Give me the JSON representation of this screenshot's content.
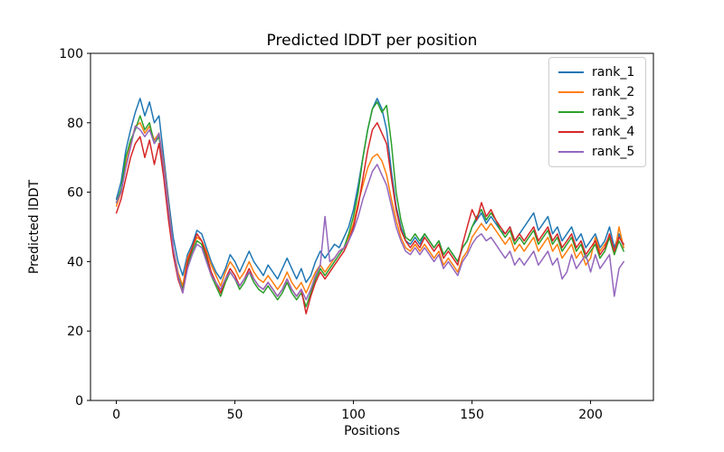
{
  "figure": {
    "background": "#ffffff",
    "text_color": "#000000",
    "spine_color": "#000000",
    "legend_border_color": "#cccccc"
  },
  "chart_data": {
    "type": "line",
    "title": "Predicted lDDT per position",
    "xlabel": "Positions",
    "ylabel": "Predicted lDDT",
    "xlim": [
      -10.9,
      226.5
    ],
    "ylim": [
      0,
      100
    ],
    "xticks": [
      0,
      50,
      100,
      150,
      200
    ],
    "yticks": [
      0,
      20,
      40,
      60,
      80,
      100
    ],
    "grid": false,
    "legend_position": "upper right",
    "line_width": 1.5,
    "x": [
      0,
      2,
      4,
      6,
      8,
      10,
      12,
      14,
      16,
      18,
      20,
      22,
      24,
      26,
      28,
      30,
      32,
      34,
      36,
      38,
      40,
      42,
      44,
      46,
      48,
      50,
      52,
      54,
      56,
      58,
      60,
      62,
      64,
      66,
      68,
      70,
      72,
      74,
      76,
      78,
      80,
      82,
      84,
      86,
      88,
      90,
      92,
      94,
      96,
      98,
      100,
      102,
      104,
      106,
      108,
      110,
      112,
      114,
      116,
      118,
      120,
      122,
      124,
      126,
      128,
      130,
      132,
      134,
      136,
      138,
      140,
      142,
      144,
      146,
      148,
      150,
      152,
      154,
      156,
      158,
      160,
      162,
      164,
      166,
      168,
      170,
      172,
      174,
      176,
      178,
      180,
      182,
      184,
      186,
      188,
      190,
      192,
      194,
      196,
      198,
      200,
      202,
      204,
      206,
      208,
      210,
      212,
      214
    ],
    "series": [
      {
        "name": "rank_1",
        "color": "#1f77b4",
        "values": [
          58,
          63,
          72,
          78,
          83,
          87,
          82,
          86,
          80,
          82,
          70,
          58,
          47,
          40,
          36,
          42,
          45,
          49,
          48,
          44,
          40,
          37,
          35,
          38,
          42,
          40,
          37,
          40,
          43,
          40,
          38,
          36,
          39,
          37,
          35,
          38,
          41,
          38,
          35,
          38,
          34,
          36,
          40,
          43,
          41,
          43,
          45,
          44,
          47,
          50,
          55,
          62,
          70,
          78,
          84,
          87,
          84,
          78,
          66,
          56,
          50,
          46,
          45,
          47,
          45,
          48,
          46,
          44,
          46,
          42,
          44,
          42,
          40,
          44,
          46,
          50,
          52,
          54,
          51,
          53,
          51,
          49,
          48,
          50,
          46,
          48,
          50,
          52,
          54,
          49,
          51,
          53,
          48,
          50,
          46,
          48,
          50,
          46,
          48,
          44,
          46,
          48,
          44,
          46,
          50,
          44,
          48,
          44
        ]
      },
      {
        "name": "rank_2",
        "color": "#ff7f0e",
        "values": [
          56,
          60,
          68,
          74,
          79,
          80,
          77,
          79,
          75,
          77,
          68,
          56,
          44,
          37,
          33,
          41,
          44,
          47,
          46,
          43,
          39,
          36,
          33,
          37,
          40,
          38,
          35,
          37,
          40,
          37,
          35,
          34,
          36,
          34,
          32,
          34,
          37,
          34,
          32,
          34,
          31,
          34,
          37,
          39,
          37,
          39,
          41,
          43,
          44,
          47,
          51,
          57,
          62,
          67,
          70,
          71,
          69,
          65,
          58,
          52,
          47,
          44,
          43,
          45,
          43,
          45,
          43,
          41,
          43,
          39,
          41,
          39,
          37,
          41,
          43,
          47,
          49,
          51,
          49,
          51,
          49,
          47,
          45,
          47,
          43,
          45,
          43,
          45,
          47,
          43,
          45,
          47,
          43,
          45,
          41,
          43,
          45,
          41,
          43,
          39,
          41,
          47,
          43,
          45,
          47,
          42,
          50,
          44
        ]
      },
      {
        "name": "rank_3",
        "color": "#2ca02c",
        "values": [
          57,
          61,
          70,
          75,
          78,
          82,
          78,
          80,
          74,
          76,
          66,
          54,
          43,
          36,
          32,
          39,
          43,
          46,
          45,
          41,
          36,
          33,
          30,
          34,
          37,
          35,
          32,
          34,
          37,
          34,
          32,
          31,
          33,
          31,
          29,
          31,
          34,
          31,
          29,
          31,
          27,
          31,
          35,
          38,
          36,
          38,
          40,
          42,
          44,
          48,
          53,
          60,
          70,
          78,
          84,
          86,
          83,
          85,
          74,
          60,
          52,
          47,
          46,
          48,
          46,
          48,
          46,
          44,
          46,
          42,
          44,
          42,
          40,
          44,
          46,
          50,
          53,
          55,
          52,
          54,
          52,
          49,
          47,
          49,
          45,
          47,
          45,
          47,
          49,
          45,
          47,
          49,
          45,
          47,
          43,
          45,
          47,
          43,
          45,
          41,
          43,
          45,
          41,
          43,
          47,
          42,
          46,
          43
        ]
      },
      {
        "name": "rank_4",
        "color": "#d62728",
        "values": [
          54,
          58,
          64,
          70,
          74,
          76,
          70,
          75,
          68,
          74,
          64,
          52,
          42,
          35,
          31,
          40,
          44,
          48,
          46,
          42,
          37,
          34,
          31,
          35,
          38,
          36,
          33,
          35,
          38,
          35,
          33,
          32,
          34,
          32,
          30,
          32,
          35,
          32,
          30,
          32,
          25,
          30,
          34,
          37,
          35,
          37,
          39,
          41,
          43,
          46,
          50,
          56,
          64,
          72,
          78,
          80,
          77,
          74,
          64,
          55,
          49,
          46,
          44,
          46,
          44,
          47,
          45,
          43,
          45,
          41,
          43,
          41,
          39,
          45,
          50,
          55,
          52,
          57,
          53,
          55,
          52,
          50,
          48,
          50,
          46,
          48,
          46,
          48,
          50,
          46,
          48,
          50,
          46,
          48,
          44,
          46,
          48,
          44,
          46,
          42,
          44,
          46,
          42,
          44,
          48,
          43,
          47,
          45
        ]
      },
      {
        "name": "rank_5",
        "color": "#9467bd",
        "values": [
          57,
          60,
          67,
          73,
          79,
          78,
          76,
          78,
          74,
          77,
          67,
          55,
          44,
          36,
          31,
          38,
          42,
          45,
          44,
          40,
          36,
          34,
          32,
          35,
          37,
          35,
          33,
          35,
          37,
          35,
          33,
          32,
          34,
          32,
          30,
          32,
          35,
          32,
          30,
          32,
          29,
          32,
          36,
          39,
          53,
          40,
          41,
          43,
          44,
          46,
          49,
          53,
          58,
          62,
          66,
          68,
          65,
          62,
          56,
          50,
          46,
          43,
          42,
          44,
          42,
          44,
          42,
          40,
          42,
          38,
          40,
          38,
          36,
          40,
          42,
          45,
          47,
          48,
          46,
          47,
          45,
          43,
          41,
          43,
          39,
          41,
          39,
          41,
          43,
          39,
          41,
          43,
          39,
          41,
          35,
          37,
          42,
          38,
          40,
          42,
          37,
          42,
          38,
          40,
          42,
          30,
          38,
          40
        ]
      }
    ]
  }
}
